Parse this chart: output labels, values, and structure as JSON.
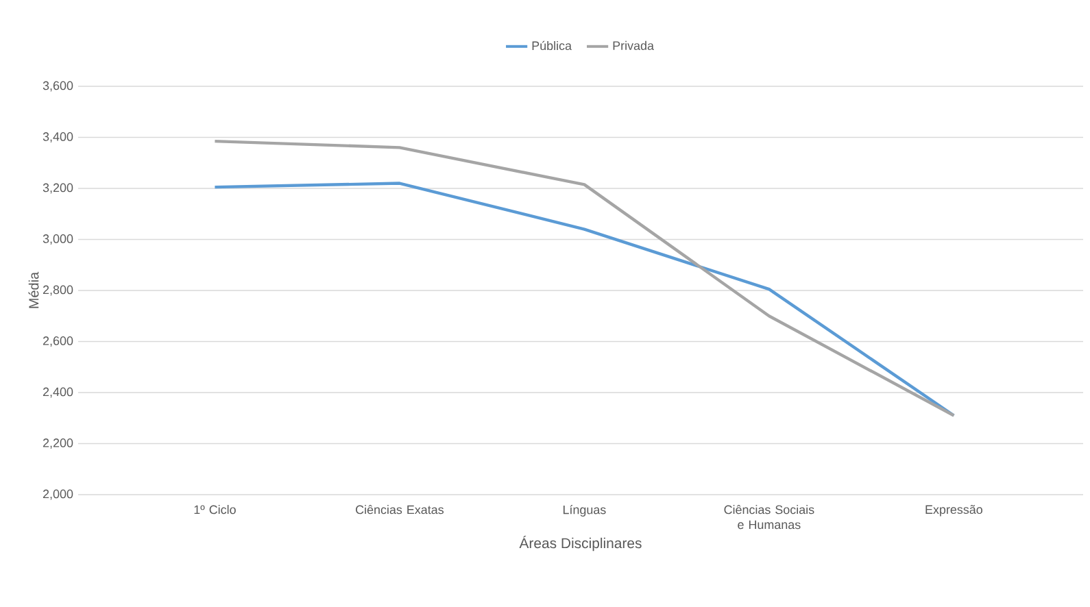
{
  "chart_data": {
    "type": "line",
    "xlabel": "Áreas Disciplinares",
    "ylabel": "Média",
    "categories": [
      "1º Ciclo",
      "Ciências Exatas",
      "Línguas",
      "Ciências Sociais e Humanas",
      "Expressão"
    ],
    "series": [
      {
        "name": "Pública",
        "color": "#5b9bd5",
        "values": [
          3205,
          3220,
          3040,
          2805,
          2310
        ]
      },
      {
        "name": "Privada",
        "color": "#a5a5a5",
        "values": [
          3385,
          3360,
          3215,
          2700,
          2310
        ]
      }
    ],
    "ylim": [
      2000,
      3600
    ],
    "yticks": [
      {
        "value": 2000,
        "label": "2,000"
      },
      {
        "value": 2200,
        "label": "2,200"
      },
      {
        "value": 2400,
        "label": "2,400"
      },
      {
        "value": 2600,
        "label": "2,600"
      },
      {
        "value": 2800,
        "label": "2,800"
      },
      {
        "value": 3000,
        "label": "3,000"
      },
      {
        "value": 3200,
        "label": "3,200"
      },
      {
        "value": 3400,
        "label": "3,400"
      },
      {
        "value": 3600,
        "label": "3,600"
      }
    ],
    "grid": "y",
    "legend": "top",
    "marker": "none",
    "line_style": "solid"
  }
}
